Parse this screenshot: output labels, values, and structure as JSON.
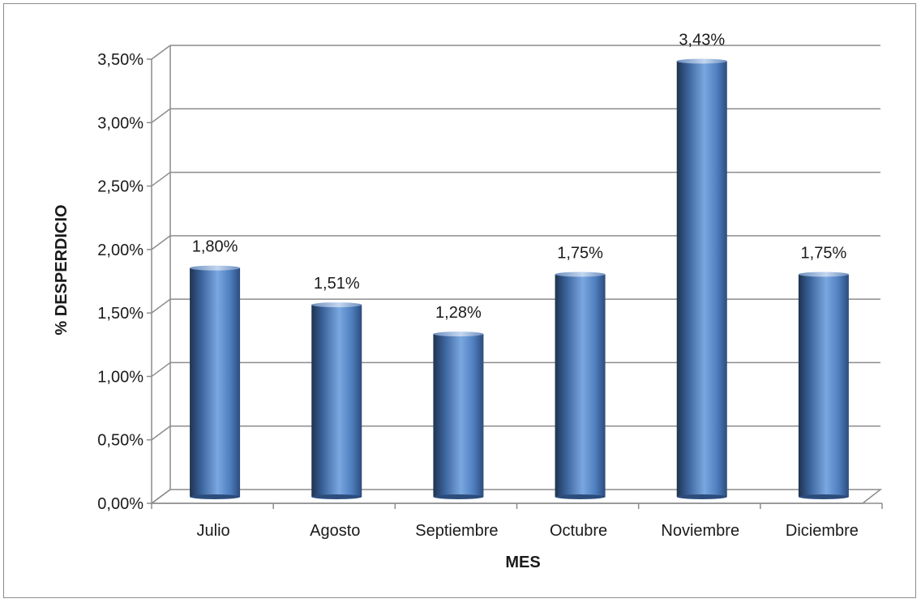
{
  "chart_data": {
    "type": "bar",
    "title": "",
    "xlabel": "MES",
    "ylabel": "% DESPERDICIO",
    "categories": [
      "Julio",
      "Agosto",
      "Septiembre",
      "Octubre",
      "Noviembre",
      "Diciembre"
    ],
    "values": [
      1.8,
      1.51,
      1.28,
      1.75,
      3.43,
      1.75
    ],
    "value_labels": [
      "1,80%",
      "1,51%",
      "1,28%",
      "1,75%",
      "3,43%",
      "1,75%"
    ],
    "ylim": [
      0,
      3.5
    ],
    "yticks": [
      0,
      0.5,
      1.0,
      1.5,
      2.0,
      2.5,
      3.0,
      3.5
    ],
    "ytick_labels": [
      "0,00%",
      "0,50%",
      "1,00%",
      "1,50%",
      "2,00%",
      "2,50%",
      "3,00%",
      "3,50%"
    ],
    "grid": true,
    "legend": "none",
    "bar_color": "#4f81bd"
  }
}
